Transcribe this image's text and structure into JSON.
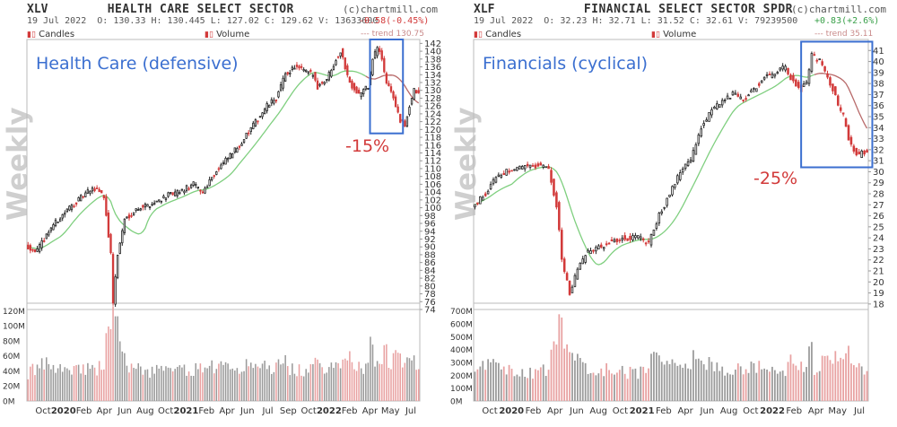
{
  "chart_data": [
    {
      "type": "candlestick",
      "symbol": "XLV",
      "title": "HEALTH CARE SELECT SECTOR",
      "source": "(c)chartmill.com",
      "date": "19 Jul 2022",
      "ohlc_text": "O: 130.33  H: 130.445  L: 127.02  C: 129.62  V: 13633600",
      "change_text": "-0.58(-0.45%)",
      "change_sign": "negative",
      "legend_candles": "Candles",
      "legend_volume": "Volume",
      "trend_label": "trend 130.75",
      "watermark": "Weekly",
      "annotation": "Health Care (defensive)",
      "drawdown_label": "-15%",
      "y_ticks": [
        "142",
        "140",
        "138",
        "136",
        "134",
        "132",
        "130",
        "128",
        "126",
        "124",
        "122",
        "120",
        "118",
        "116",
        "114",
        "112",
        "110",
        "108",
        "106",
        "104",
        "102",
        "100",
        "98",
        "96",
        "94",
        "92",
        "90",
        "88",
        "86",
        "84",
        "82",
        "80",
        "78",
        "76",
        "74"
      ],
      "ylim": [
        74,
        143
      ],
      "vol_ticks": [
        "120M",
        "100M",
        "80M",
        "60M",
        "40M",
        "20M",
        "0M"
      ],
      "vol_lim": [
        0,
        130
      ],
      "x_ticks": [
        "Oct",
        "2020",
        "Feb",
        "Apr",
        "Jun",
        "Aug",
        "Oct",
        "2021",
        "Feb",
        "Apr",
        "Jun",
        "Jul",
        "Sep",
        "Oct",
        "2022",
        "Feb",
        "Apr",
        "May",
        "Jul"
      ],
      "keypoints": [
        [
          0,
          90
        ],
        [
          4,
          89
        ],
        [
          10,
          95
        ],
        [
          18,
          100
        ],
        [
          26,
          104
        ],
        [
          30,
          105
        ],
        [
          33,
          103
        ],
        [
          36,
          88
        ],
        [
          37,
          76
        ],
        [
          39,
          88
        ],
        [
          42,
          97
        ],
        [
          48,
          100
        ],
        [
          54,
          101
        ],
        [
          60,
          103
        ],
        [
          66,
          104
        ],
        [
          72,
          106
        ],
        [
          76,
          104
        ],
        [
          80,
          108
        ],
        [
          86,
          112
        ],
        [
          92,
          116
        ],
        [
          98,
          121
        ],
        [
          104,
          126
        ],
        [
          108,
          128
        ],
        [
          112,
          134
        ],
        [
          116,
          136
        ],
        [
          120,
          135
        ],
        [
          124,
          134
        ],
        [
          126,
          131
        ],
        [
          130,
          133
        ],
        [
          134,
          138
        ],
        [
          136,
          140
        ],
        [
          138,
          136
        ],
        [
          140,
          132
        ],
        [
          144,
          129
        ],
        [
          148,
          131
        ],
        [
          150,
          138
        ],
        [
          152,
          141
        ],
        [
          154,
          138
        ],
        [
          156,
          132
        ],
        [
          158,
          130
        ],
        [
          160,
          126
        ],
        [
          162,
          122
        ],
        [
          164,
          121
        ],
        [
          166,
          126
        ],
        [
          168,
          130
        ],
        [
          170,
          129
        ]
      ],
      "highlight": {
        "x0": 150,
        "x1": 162,
        "y0": 119,
        "y1": 143
      },
      "colors": {
        "up": "#222222",
        "down": "#d23a3a",
        "ma": "#7fcf7f",
        "ma_tail": "#b86a6a",
        "box": "#3b6fd0",
        "vol_up": "#9a9a9a",
        "vol_down": "#e8a1a1"
      }
    },
    {
      "type": "candlestick",
      "symbol": "XLF",
      "title": "FINANCIAL SELECT SECTOR SPDR",
      "source": "(c)chartmill.com",
      "date": "19 Jul 2022",
      "ohlc_text": "O: 32.23  H: 32.71  L: 31.52  C: 32.61  V: 79239500",
      "change_text": "+0.83(+2.6%)",
      "change_sign": "positive",
      "legend_candles": "Candles",
      "legend_volume": "Volume",
      "trend_label": "trend 35.11",
      "watermark": "Weekly",
      "annotation": "Financials (cyclical)",
      "drawdown_label": "-25%",
      "y_ticks": [
        "41",
        "40",
        "39",
        "38",
        "37",
        "36",
        "35",
        "34",
        "33",
        "32",
        "31",
        "30",
        "29",
        "28",
        "27",
        "26",
        "25",
        "24",
        "23",
        "22",
        "21",
        "20",
        "19",
        "18"
      ],
      "ylim": [
        17.5,
        42
      ],
      "vol_ticks": [
        "700M",
        "600M",
        "500M",
        "400M",
        "300M",
        "200M",
        "100M",
        "0M"
      ],
      "vol_lim": [
        0,
        760
      ],
      "x_ticks": [
        "Oct",
        "2020",
        "Feb",
        "Apr",
        "Jun",
        "Aug",
        "Oct",
        "2021",
        "Feb",
        "Apr",
        "Jun",
        "Aug",
        "Oct",
        "2022",
        "Feb",
        "Apr",
        "May",
        "Jul"
      ],
      "keypoints": [
        [
          0,
          27
        ],
        [
          4,
          28
        ],
        [
          8,
          29.5
        ],
        [
          14,
          30.3
        ],
        [
          20,
          30.5
        ],
        [
          24,
          30.6
        ],
        [
          28,
          30.3
        ],
        [
          31,
          27
        ],
        [
          33,
          22
        ],
        [
          36,
          19
        ],
        [
          39,
          21
        ],
        [
          42,
          22.5
        ],
        [
          46,
          23
        ],
        [
          50,
          23.5
        ],
        [
          56,
          24
        ],
        [
          62,
          24
        ],
        [
          66,
          23.5
        ],
        [
          70,
          26
        ],
        [
          74,
          28
        ],
        [
          78,
          30
        ],
        [
          82,
          31
        ],
        [
          86,
          34
        ],
        [
          90,
          35.5
        ],
        [
          94,
          36.5
        ],
        [
          98,
          37
        ],
        [
          102,
          36.5
        ],
        [
          106,
          37.5
        ],
        [
          110,
          38.5
        ],
        [
          114,
          39
        ],
        [
          118,
          39.5
        ],
        [
          120,
          38.5
        ],
        [
          124,
          37.5
        ],
        [
          126,
          38
        ],
        [
          128,
          40.5
        ],
        [
          131,
          40
        ],
        [
          134,
          38.5
        ],
        [
          136,
          37.5
        ],
        [
          138,
          36
        ],
        [
          140,
          35
        ],
        [
          142,
          33
        ],
        [
          144,
          32
        ],
        [
          146,
          31.5
        ],
        [
          149,
          32
        ]
      ],
      "highlight": {
        "x0": 125,
        "x1": 150,
        "y0": 30.4,
        "y1": 41.8
      },
      "colors": {
        "up": "#222222",
        "down": "#d23a3a",
        "ma": "#7fcf7f",
        "ma_tail": "#b86a6a",
        "box": "#3b6fd0",
        "vol_up": "#9a9a9a",
        "vol_down": "#e8a1a1"
      }
    }
  ]
}
